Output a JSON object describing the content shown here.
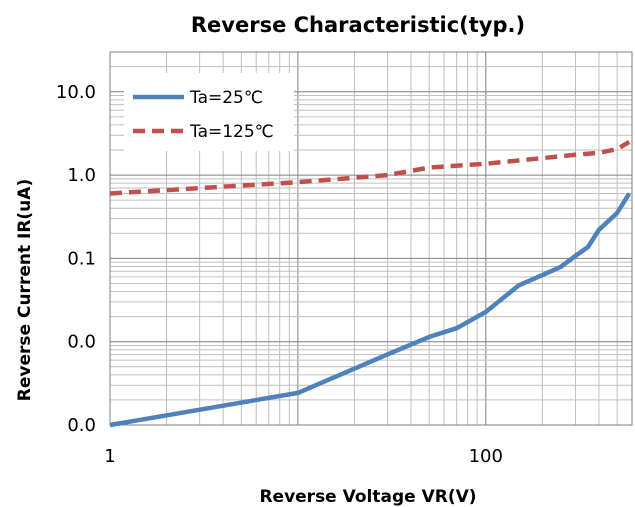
{
  "chart_data": {
    "type": "line",
    "title": "Reverse Characteristic(typ.)",
    "xlabel": "Reverse Voltage VR(V)",
    "ylabel": "Reverse Current IR(uA)",
    "x_scale": "log",
    "y_scale": "log",
    "xlim": [
      1,
      600
    ],
    "ylim": [
      0.001,
      30
    ],
    "x_ticks": [
      {
        "value": 1,
        "label": "1"
      },
      {
        "value": 100,
        "label": "100"
      }
    ],
    "y_ticks": [
      {
        "value": 0.001,
        "label": "0.0"
      },
      {
        "value": 0.01,
        "label": "0.0"
      },
      {
        "value": 0.1,
        "label": "0.1"
      },
      {
        "value": 1,
        "label": "1.0"
      },
      {
        "value": 10,
        "label": "10.0"
      }
    ],
    "grid": true,
    "legend_position": "top-left",
    "series": [
      {
        "name": "Ta=25℃",
        "color": "#4f81bd",
        "dash": "solid",
        "points": [
          [
            1,
            0.001
          ],
          [
            10,
            0.00243
          ],
          [
            30,
            0.00703
          ],
          [
            50,
            0.0114
          ],
          [
            70,
            0.0145
          ],
          [
            100,
            0.0228
          ],
          [
            150,
            0.0475
          ],
          [
            200,
            0.063
          ],
          [
            250,
            0.079
          ],
          [
            300,
            0.107
          ],
          [
            350,
            0.137
          ],
          [
            400,
            0.22
          ],
          [
            500,
            0.35
          ],
          [
            580,
            0.6
          ]
        ]
      },
      {
        "name": "Ta=125℃",
        "color": "#c0504d",
        "dash": "dashed",
        "points": [
          [
            1,
            0.6
          ],
          [
            10,
            0.82
          ],
          [
            30,
            1.0
          ],
          [
            50,
            1.23
          ],
          [
            100,
            1.37
          ],
          [
            200,
            1.6
          ],
          [
            300,
            1.75
          ],
          [
            400,
            1.85
          ],
          [
            500,
            2.05
          ],
          [
            580,
            2.5
          ]
        ]
      }
    ]
  }
}
